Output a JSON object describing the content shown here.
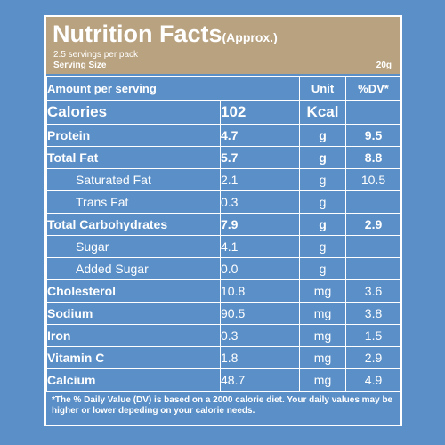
{
  "header": {
    "title": "Nutrition Facts",
    "title_suffix": "(Approx.)",
    "servings_per_pack": "2.5 servings per pack",
    "serving_size_label": "Serving Size",
    "serving_size_value": "20g"
  },
  "table": {
    "col_amount": "Amount per serving",
    "col_unit": "Unit",
    "col_dv": "%DV*",
    "rows": [
      {
        "name": "Calories",
        "amount": "102",
        "unit": "Kcal",
        "dv": ""
      },
      {
        "name": "Protein",
        "amount": "4.7",
        "unit": "g",
        "dv": "9.5"
      },
      {
        "name": "Total Fat",
        "amount": "5.7",
        "unit": "g",
        "dv": "8.8"
      },
      {
        "name": "Saturated Fat",
        "amount": "2.1",
        "unit": "g",
        "dv": "10.5"
      },
      {
        "name": "Trans Fat",
        "amount": "0.3",
        "unit": "g",
        "dv": ""
      },
      {
        "name": "Total Carbohydrates",
        "amount": "7.9",
        "unit": "g",
        "dv": "2.9"
      },
      {
        "name": "Sugar",
        "amount": "4.1",
        "unit": "g",
        "dv": ""
      },
      {
        "name": "Added Sugar",
        "amount": "0.0",
        "unit": "g",
        "dv": ""
      },
      {
        "name": "Cholesterol",
        "amount": "10.8",
        "unit": "mg",
        "dv": "3.6"
      },
      {
        "name": "Sodium",
        "amount": "90.5",
        "unit": "mg",
        "dv": "3.8"
      },
      {
        "name": "Iron",
        "amount": "0.3",
        "unit": "mg",
        "dv": "1.5"
      },
      {
        "name": "Vitamin C",
        "amount": "1.8",
        "unit": "mg",
        "dv": "2.9"
      },
      {
        "name": "Calcium",
        "amount": "48.7",
        "unit": "mg",
        "dv": "4.9"
      }
    ]
  },
  "footnote": "*The % Daily Value (DV) is based on a 2000 calorie diet. Your daily values may be higher or lower depeding on your calorie needs.",
  "colors": {
    "background": "#5b8fc7",
    "header": "#b9a27f",
    "text": "#ffffff"
  }
}
